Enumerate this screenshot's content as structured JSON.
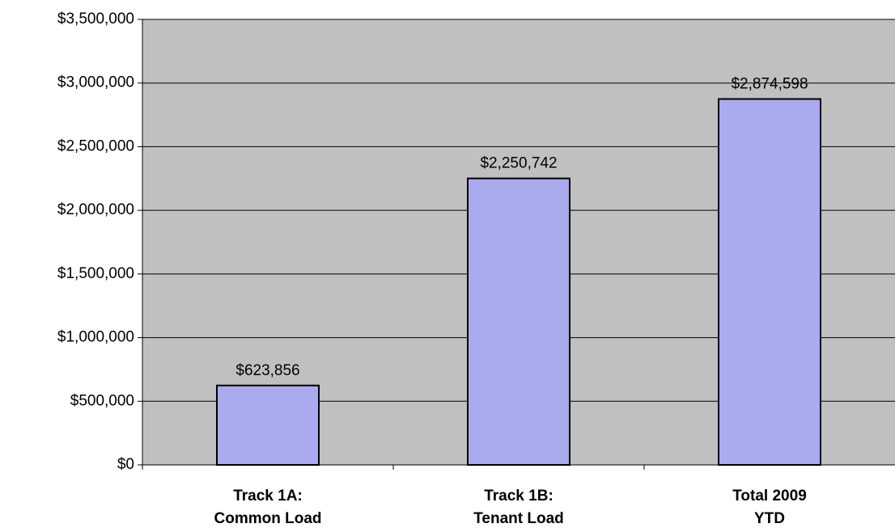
{
  "chart_data": {
    "type": "bar",
    "categories": [
      "Track 1A:\nCommon Load",
      "Track 1B:\nTenant Load",
      "Total 2009\nYTD"
    ],
    "values": [
      623856,
      2250742,
      2874598
    ],
    "value_labels": [
      "$623,856",
      "$2,250,742",
      "$2,874,598"
    ],
    "color": "#aaaaee",
    "ylim": [
      0,
      3500000
    ],
    "yticks": [
      {
        "value": 0,
        "label": "$0"
      },
      {
        "value": 500000,
        "label": "$500,000"
      },
      {
        "value": 1000000,
        "label": "$1,000,000"
      },
      {
        "value": 1500000,
        "label": "$1,500,000"
      },
      {
        "value": 2000000,
        "label": "$2,000,000"
      },
      {
        "value": 2500000,
        "label": "$2,500,000"
      },
      {
        "value": 3000000,
        "label": "$3,000,000"
      },
      {
        "value": 3500000,
        "label": "$3,500,000"
      }
    ],
    "grid": true
  }
}
